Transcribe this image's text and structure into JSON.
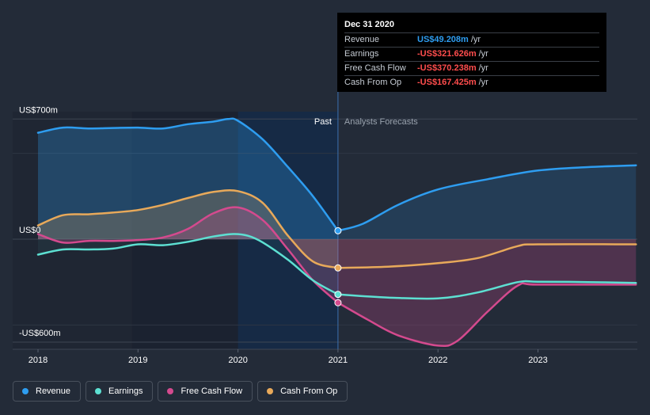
{
  "chart_data": {
    "type": "line",
    "x_tick_labels": [
      "2018",
      "2019",
      "2020",
      "2021",
      "2022",
      "2023"
    ],
    "y_axis_labels": [
      "US$700m",
      "US$0",
      "-US$600m"
    ],
    "ylim": [
      -600,
      700
    ],
    "xlim": [
      2017.77,
      2023.98
    ],
    "past_label": "Past",
    "forecast_label": "Analysts Forecasts",
    "divider_x": 2021.0,
    "series": [
      {
        "name": "Revenue",
        "color": "#2e9df0",
        "points": [
          [
            2018.0,
            620
          ],
          [
            2018.25,
            650
          ],
          [
            2018.5,
            645
          ],
          [
            2018.75,
            648
          ],
          [
            2019.0,
            650
          ],
          [
            2019.25,
            645
          ],
          [
            2019.5,
            670
          ],
          [
            2019.75,
            685
          ],
          [
            2019.9,
            700
          ],
          [
            2020.0,
            690
          ],
          [
            2020.25,
            580
          ],
          [
            2020.5,
            420
          ],
          [
            2020.75,
            250
          ],
          [
            2021.0,
            49.208
          ]
        ],
        "forecast": [
          [
            2021.0,
            49.208
          ],
          [
            2021.25,
            90
          ],
          [
            2021.6,
            200
          ],
          [
            2022.0,
            290
          ],
          [
            2022.5,
            350
          ],
          [
            2023.0,
            400
          ],
          [
            2023.5,
            420
          ],
          [
            2023.98,
            430
          ]
        ]
      },
      {
        "name": "Earnings",
        "color": "#5de0d2",
        "points": [
          [
            2018.0,
            -90
          ],
          [
            2018.25,
            -60
          ],
          [
            2018.5,
            -60
          ],
          [
            2018.75,
            -55
          ],
          [
            2019.0,
            -30
          ],
          [
            2019.25,
            -35
          ],
          [
            2019.5,
            -15
          ],
          [
            2019.75,
            15
          ],
          [
            2019.95,
            30
          ],
          [
            2020.1,
            20
          ],
          [
            2020.25,
            -20
          ],
          [
            2020.5,
            -120
          ],
          [
            2020.75,
            -240
          ],
          [
            2021.0,
            -321.626
          ]
        ],
        "forecast": [
          [
            2021.0,
            -321.626
          ],
          [
            2021.5,
            -340
          ],
          [
            2022.0,
            -345
          ],
          [
            2022.4,
            -310
          ],
          [
            2022.8,
            -250
          ],
          [
            2023.0,
            -248
          ],
          [
            2023.5,
            -250
          ],
          [
            2023.98,
            -255
          ]
        ]
      },
      {
        "name": "Free Cash Flow",
        "color": "#d44a8e",
        "points": [
          [
            2018.0,
            30
          ],
          [
            2018.25,
            -20
          ],
          [
            2018.5,
            -10
          ],
          [
            2018.75,
            -10
          ],
          [
            2019.0,
            -5
          ],
          [
            2019.25,
            10
          ],
          [
            2019.5,
            60
          ],
          [
            2019.75,
            150
          ],
          [
            2020.0,
            185
          ],
          [
            2020.25,
            110
          ],
          [
            2020.5,
            -60
          ],
          [
            2020.75,
            -240
          ],
          [
            2021.0,
            -370.238
          ]
        ],
        "forecast": [
          [
            2021.0,
            -370.238
          ],
          [
            2021.3,
            -470
          ],
          [
            2021.6,
            -560
          ],
          [
            2022.0,
            -620
          ],
          [
            2022.2,
            -590
          ],
          [
            2022.5,
            -420
          ],
          [
            2022.8,
            -270
          ],
          [
            2023.0,
            -265
          ],
          [
            2023.98,
            -265
          ]
        ]
      },
      {
        "name": "Cash From Op",
        "color": "#e8a95a",
        "points": [
          [
            2018.0,
            80
          ],
          [
            2018.25,
            140
          ],
          [
            2018.5,
            145
          ],
          [
            2018.75,
            155
          ],
          [
            2019.0,
            170
          ],
          [
            2019.25,
            200
          ],
          [
            2019.5,
            240
          ],
          [
            2019.75,
            275
          ],
          [
            2020.0,
            280
          ],
          [
            2020.25,
            210
          ],
          [
            2020.5,
            20
          ],
          [
            2020.75,
            -130
          ],
          [
            2021.0,
            -167.425
          ]
        ],
        "forecast": [
          [
            2021.0,
            -167.425
          ],
          [
            2021.5,
            -160
          ],
          [
            2022.0,
            -140
          ],
          [
            2022.4,
            -110
          ],
          [
            2022.8,
            -40
          ],
          [
            2023.0,
            -30
          ],
          [
            2023.98,
            -30
          ]
        ]
      }
    ]
  },
  "tooltip": {
    "date": "Dec 31 2020",
    "rows": [
      {
        "label": "Revenue",
        "value": "US$49.208m",
        "unit": "/yr",
        "sign": "pos"
      },
      {
        "label": "Earnings",
        "value": "-US$321.626m",
        "unit": "/yr",
        "sign": "neg"
      },
      {
        "label": "Free Cash Flow",
        "value": "-US$370.238m",
        "unit": "/yr",
        "sign": "neg"
      },
      {
        "label": "Cash From Op",
        "value": "-US$167.425m",
        "unit": "/yr",
        "sign": "neg"
      }
    ]
  },
  "legend": [
    {
      "label": "Revenue",
      "color": "#2e9df0"
    },
    {
      "label": "Earnings",
      "color": "#5de0d2"
    },
    {
      "label": "Free Cash Flow",
      "color": "#d44a8e"
    },
    {
      "label": "Cash From Op",
      "color": "#e8a95a"
    }
  ]
}
